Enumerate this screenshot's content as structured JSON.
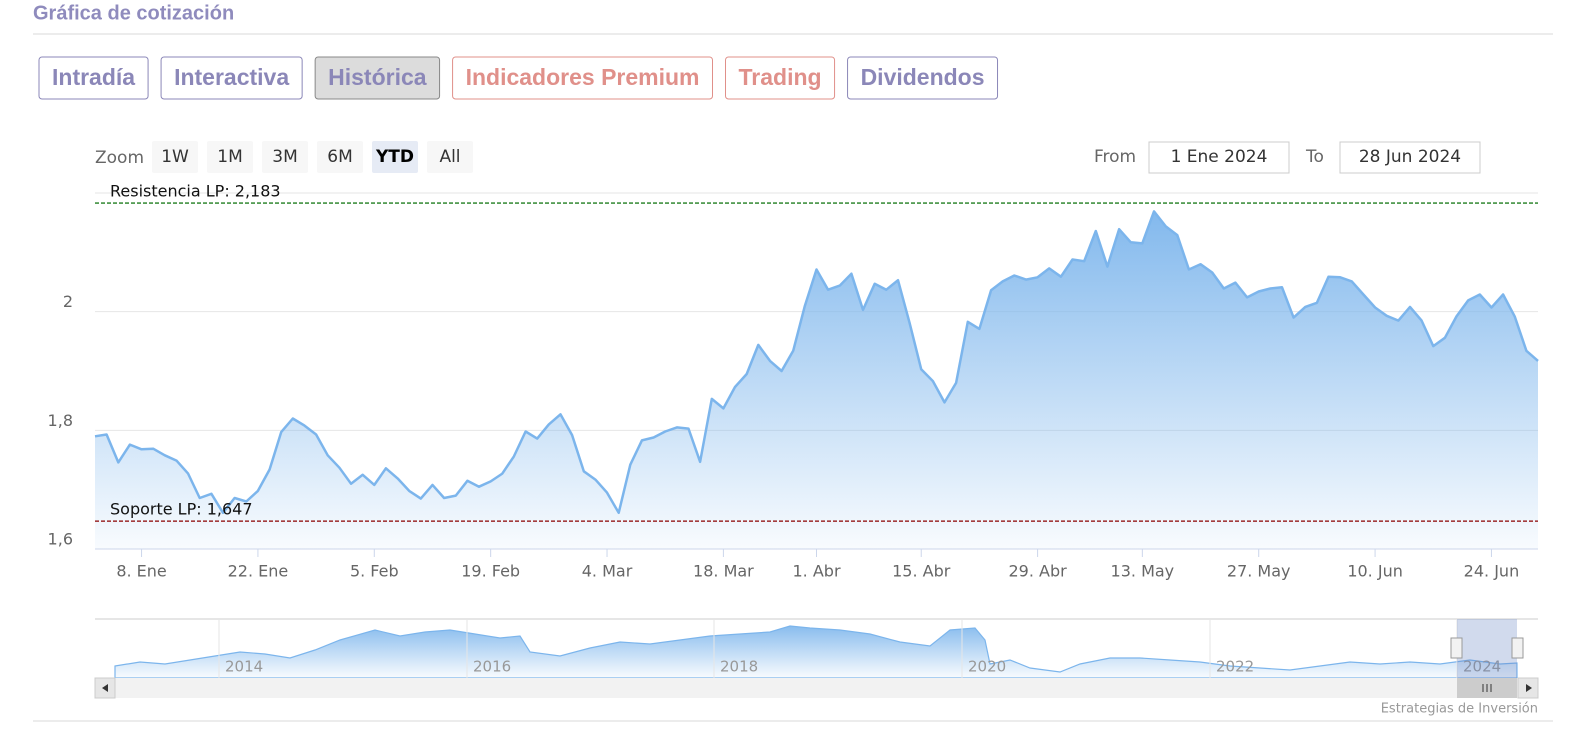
{
  "header": {
    "title": "Gráfica de cotización"
  },
  "tabs": [
    {
      "label": "Intradía",
      "color": "#8b87b8"
    },
    {
      "label": "Interactiva",
      "color": "#8b87b8"
    },
    {
      "label": "Histórica",
      "color": "#8b87b8",
      "selected": true
    },
    {
      "label": "Indicadores Premium",
      "color": "#e0908a"
    },
    {
      "label": "Trading",
      "color": "#e0908a"
    },
    {
      "label": "Dividendos",
      "color": "#8b87b8"
    }
  ],
  "zoom": {
    "label": "Zoom",
    "buttons": [
      "1W",
      "1M",
      "3M",
      "6M",
      "YTD",
      "All"
    ],
    "selected": "YTD"
  },
  "range": {
    "from_label": "From",
    "from": "1 Ene 2024",
    "to_label": "To",
    "to": "28 Jun 2024"
  },
  "chart_data": {
    "type": "area",
    "color": "#7cb5ec",
    "grid": true,
    "categories": [
      null,
      null,
      null,
      null,
      "8. Ene",
      null,
      null,
      null,
      null,
      null,
      null,
      null,
      null,
      null,
      "22. Ene",
      null,
      null,
      null,
      null,
      null,
      null,
      null,
      null,
      null,
      "5. Feb",
      null,
      null,
      null,
      null,
      null,
      null,
      null,
      null,
      null,
      "19. Feb",
      null,
      null,
      null,
      null,
      null,
      null,
      null,
      null,
      null,
      "4. Mar",
      null,
      null,
      null,
      null,
      null,
      null,
      null,
      null,
      null,
      "18. Mar",
      null,
      null,
      null,
      null,
      null,
      null,
      null,
      "1. Abr",
      null,
      null,
      null,
      null,
      null,
      null,
      null,
      null,
      "15. Abr",
      null,
      null,
      null,
      null,
      null,
      null,
      null,
      null,
      null,
      "29. Abr",
      null,
      null,
      null,
      null,
      null,
      null,
      null,
      null,
      "13. May",
      null,
      null,
      null,
      null,
      null,
      null,
      null,
      null,
      null,
      "27. May",
      null,
      null,
      null,
      null,
      null,
      null,
      null,
      null,
      null,
      "10. Jun",
      null,
      null,
      null,
      null,
      null,
      null,
      null,
      null,
      null,
      "24. Jun",
      null,
      null,
      null,
      null
    ],
    "values": [
      1.79,
      1.793,
      1.746,
      1.776,
      1.768,
      1.769,
      1.758,
      1.749,
      1.727,
      1.686,
      1.693,
      1.661,
      1.686,
      1.68,
      1.698,
      1.734,
      1.797,
      1.82,
      1.808,
      1.793,
      1.758,
      1.737,
      1.71,
      1.725,
      1.708,
      1.736,
      1.719,
      1.698,
      1.685,
      1.708,
      1.686,
      1.69,
      1.715,
      1.705,
      1.714,
      1.727,
      1.756,
      1.798,
      1.786,
      1.81,
      1.827,
      1.792,
      1.731,
      1.717,
      1.695,
      1.661,
      1.742,
      1.783,
      1.788,
      1.798,
      1.805,
      1.803,
      1.747,
      1.853,
      1.837,
      1.873,
      1.895,
      1.944,
      1.917,
      1.9,
      1.934,
      2.01,
      2.071,
      2.037,
      2.044,
      2.064,
      2.003,
      2.047,
      2.037,
      2.053,
      1.981,
      1.903,
      1.883,
      1.847,
      1.88,
      1.983,
      1.971,
      2.036,
      2.051,
      2.061,
      2.054,
      2.058,
      2.073,
      2.059,
      2.088,
      2.085,
      2.136,
      2.076,
      2.139,
      2.117,
      2.115,
      2.169,
      2.144,
      2.129,
      2.071,
      2.08,
      2.066,
      2.039,
      2.049,
      2.024,
      2.034,
      2.039,
      2.041,
      1.99,
      2.008,
      2.015,
      2.059,
      2.058,
      2.051,
      2.029,
      2.007,
      1.993,
      1.985,
      2.008,
      1.985,
      1.942,
      1.956,
      1.992,
      2.019,
      2.029,
      2.007,
      2.029,
      1.992,
      1.934,
      1.917
    ],
    "ylim": [
      1.6,
      2.2
    ],
    "yticks": [
      {
        "value": 1.6,
        "label": "1,6"
      },
      {
        "value": 1.8,
        "label": "1,8"
      },
      2
    ],
    "reference_lines": [
      {
        "label": "Resistencia LP: 2,183",
        "value": 2.183,
        "color": "#1e7d1e"
      },
      {
        "label": "Soporte LP: 1,647",
        "value": 1.647,
        "color": "#8b0000"
      }
    ]
  },
  "navigator": {
    "labels": [
      "2014",
      "2016",
      "2018",
      "2020",
      "2022",
      "2024"
    ]
  },
  "credits": "Estrategias de Inversión"
}
